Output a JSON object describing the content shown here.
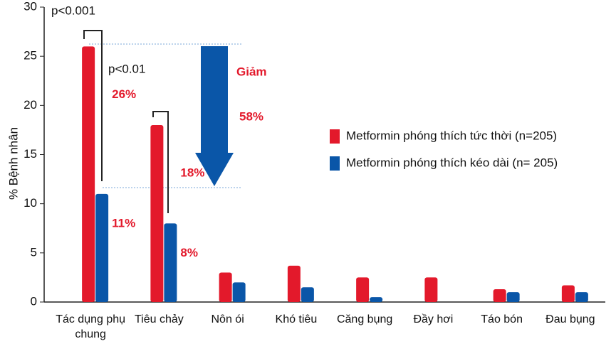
{
  "chart_data": {
    "type": "bar",
    "y_label": "% Bệnh nhân",
    "categories": [
      "Tác dụng phụ chung",
      "Tiêu chảy",
      "Nôn ói",
      "Khó tiêu",
      "Căng bụng",
      "Đầy hơi",
      "Táo bón",
      "Đau bụng"
    ],
    "series": [
      {
        "name": "Metformin phóng thích tức thời (n=205)",
        "color": "#e3192b",
        "values": [
          26,
          18,
          3,
          3.7,
          2.5,
          2.5,
          1.3,
          1.7
        ],
        "value_labels": [
          "26%",
          "18%",
          null,
          null,
          null,
          null,
          null,
          null
        ]
      },
      {
        "name": "Metformin phóng thích kéo dài (n= 205)",
        "color": "#0a56a8",
        "values": [
          11,
          8,
          2,
          1.5,
          0.5,
          0,
          1,
          1
        ],
        "value_labels": [
          "11%",
          "8%",
          null,
          null,
          null,
          null,
          null,
          null
        ]
      }
    ],
    "ylim": [
      0,
      30
    ],
    "yticks": [
      0,
      5,
      10,
      15,
      20,
      25,
      30
    ],
    "grid": false,
    "annotations": [
      "p<0.001",
      "p<0.01",
      "Giảm",
      "58%"
    ]
  }
}
